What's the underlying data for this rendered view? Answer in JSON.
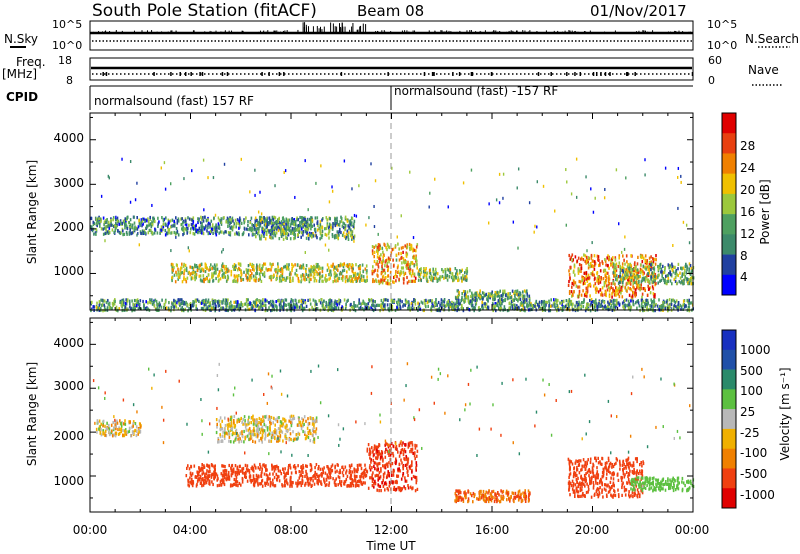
{
  "header": {
    "title": "South Pole Station (fitACF)",
    "beam": "Beam 08",
    "date": "01/Nov/2017"
  },
  "params": {
    "nsky_label": "N.Sky",
    "nsky_ticks": [
      "10^5",
      "10^0"
    ],
    "nsearch_label": "N.Search",
    "nsearch_ticks": [
      "10^5",
      "10^0"
    ],
    "freq_label": "Freq.",
    "freq_unit": "[MHz]",
    "freq_ticks": [
      "18",
      "8"
    ],
    "nave_label": "Nave",
    "nave_ticks": [
      "60",
      "0"
    ],
    "cpid_label": "CPID",
    "cpid_segments": [
      "normalsound (fast) 157 RF",
      "normalsound (fast) -157 RF"
    ]
  },
  "colors": {
    "power": [
      "#0000ff",
      "#2040a0",
      "#3c8a6a",
      "#4ea060",
      "#9cc83c",
      "#f0c000",
      "#f08000",
      "#e84010",
      "#e00000"
    ],
    "velocity": [
      "#e00000",
      "#f04010",
      "#f08000",
      "#f0b000",
      "#b8b8b8",
      "#5cc040",
      "#2a8a6a",
      "#2050a8",
      "#1830c0"
    ],
    "ground_scatter": "#a0a0a0"
  },
  "chart_data": [
    {
      "type": "heatmap",
      "panel": "power",
      "ylabel": "Slant Range [km]",
      "yticks": [
        "1000",
        "2000",
        "3000",
        "4000"
      ],
      "ylim": [
        180,
        4600
      ],
      "xticks": [
        "00:00",
        "04:00",
        "08:00",
        "12:00",
        "16:00",
        "20:00",
        "00:00"
      ],
      "xlim_hours": [
        0,
        24
      ],
      "colorbar_label": "Power [dB]",
      "colorbar_ticks": [
        "4",
        "8",
        "12",
        "16",
        "20",
        "24",
        "28"
      ],
      "colorbar_range": [
        0,
        30
      ],
      "features": [
        {
          "t_start": 0.0,
          "t_end": 8.8,
          "range_km": [
            1900,
            2300
          ],
          "value": 9
        },
        {
          "t_start": 6.5,
          "t_end": 10.5,
          "range_km": [
            1800,
            2300
          ],
          "value": 11
        },
        {
          "t_start": 3.2,
          "t_end": 11.0,
          "range_km": [
            850,
            1250
          ],
          "value": 16
        },
        {
          "t_start": 11.2,
          "t_end": 13.0,
          "range_km": [
            800,
            1700
          ],
          "value": 20
        },
        {
          "t_start": 13.0,
          "t_end": 15.0,
          "range_km": [
            850,
            1150
          ],
          "value": 14
        },
        {
          "t_start": 14.5,
          "t_end": 17.5,
          "range_km": [
            450,
            650
          ],
          "value": 12
        },
        {
          "t_start": 19.0,
          "t_end": 22.5,
          "range_km": [
            500,
            1450
          ],
          "value": 22
        },
        {
          "t_start": 20.8,
          "t_end": 24.0,
          "range_km": [
            800,
            1250
          ],
          "value": 12
        },
        {
          "t_start": 0.0,
          "t_end": 24.0,
          "range_km": [
            200,
            450
          ],
          "value": 10
        }
      ]
    },
    {
      "type": "heatmap",
      "panel": "velocity",
      "ylabel": "Slant Range [km]",
      "yticks": [
        "1000",
        "2000",
        "3000",
        "4000"
      ],
      "ylim": [
        180,
        4600
      ],
      "xticks": [
        "00:00",
        "04:00",
        "08:00",
        "12:00",
        "16:00",
        "20:00",
        "00:00"
      ],
      "xlabel": "Time UT",
      "xlim_hours": [
        0,
        24
      ],
      "colorbar_label": "Velocity [m s⁻¹]",
      "colorbar_ticks": [
        "1000",
        "500",
        "100",
        "25",
        "-25",
        "-100",
        "-500",
        "-1000"
      ],
      "features": [
        {
          "t_start": 0.2,
          "t_end": 2.0,
          "range_km": [
            1950,
            2300
          ],
          "value": 0
        },
        {
          "t_start": 5.0,
          "t_end": 9.0,
          "range_km": [
            1800,
            2400
          ],
          "value": 0
        },
        {
          "t_start": 3.8,
          "t_end": 11.0,
          "range_km": [
            800,
            1300
          ],
          "value": -300
        },
        {
          "t_start": 11.0,
          "t_end": 13.0,
          "range_km": [
            700,
            1800
          ],
          "value": -400
        },
        {
          "t_start": 14.5,
          "t_end": 17.5,
          "range_km": [
            450,
            700
          ],
          "value": -90
        },
        {
          "t_start": 19.0,
          "t_end": 22.0,
          "range_km": [
            550,
            1450
          ],
          "value": -300
        },
        {
          "t_start": 21.5,
          "t_end": 24.0,
          "range_km": [
            700,
            1000
          ],
          "value": 60
        }
      ]
    }
  ]
}
